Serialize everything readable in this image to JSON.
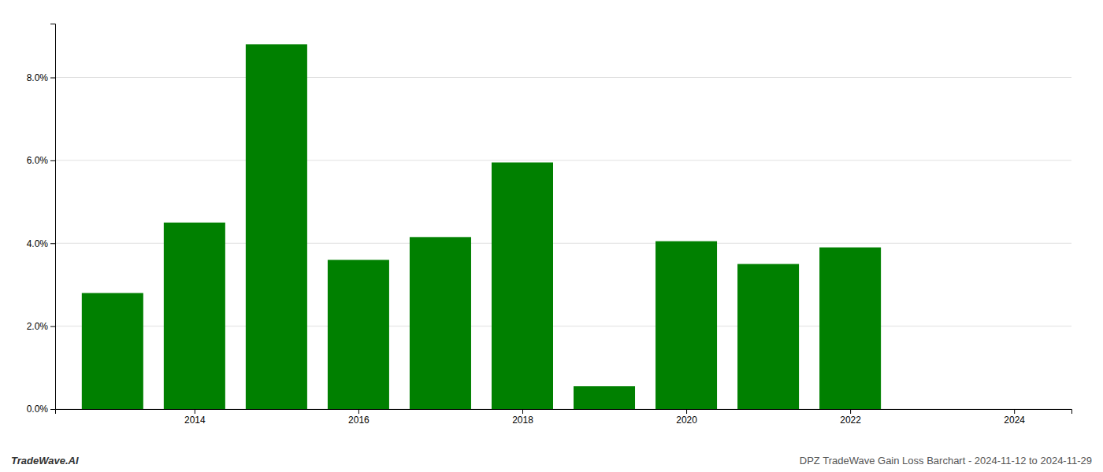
{
  "chart_data": {
    "type": "bar",
    "x": [
      2013,
      2014,
      2015,
      2016,
      2017,
      2018,
      2019,
      2020,
      2021,
      2022,
      2023
    ],
    "values": [
      0.028,
      0.045,
      0.088,
      0.036,
      0.0415,
      0.0595,
      0.0055,
      0.0405,
      0.035,
      0.039,
      0.0
    ],
    "color": "#008000",
    "xlim": [
      2012.3,
      2024.7
    ],
    "xticks": [
      2014,
      2016,
      2018,
      2020,
      2022,
      2024
    ],
    "ylim": [
      0,
      0.093
    ],
    "yticks": [
      {
        "value": 0.0,
        "label": "0.0%"
      },
      {
        "value": 0.02,
        "label": "2.0%"
      },
      {
        "value": 0.04,
        "label": "4.0%"
      },
      {
        "value": 0.06,
        "label": "6.0%"
      },
      {
        "value": 0.08,
        "label": "8.0%"
      }
    ],
    "grid": true,
    "annotations": [
      "TradeWave.AI",
      "DPZ TradeWave Gain Loss Barchart - 2024-11-12 to 2024-11-29"
    ]
  }
}
